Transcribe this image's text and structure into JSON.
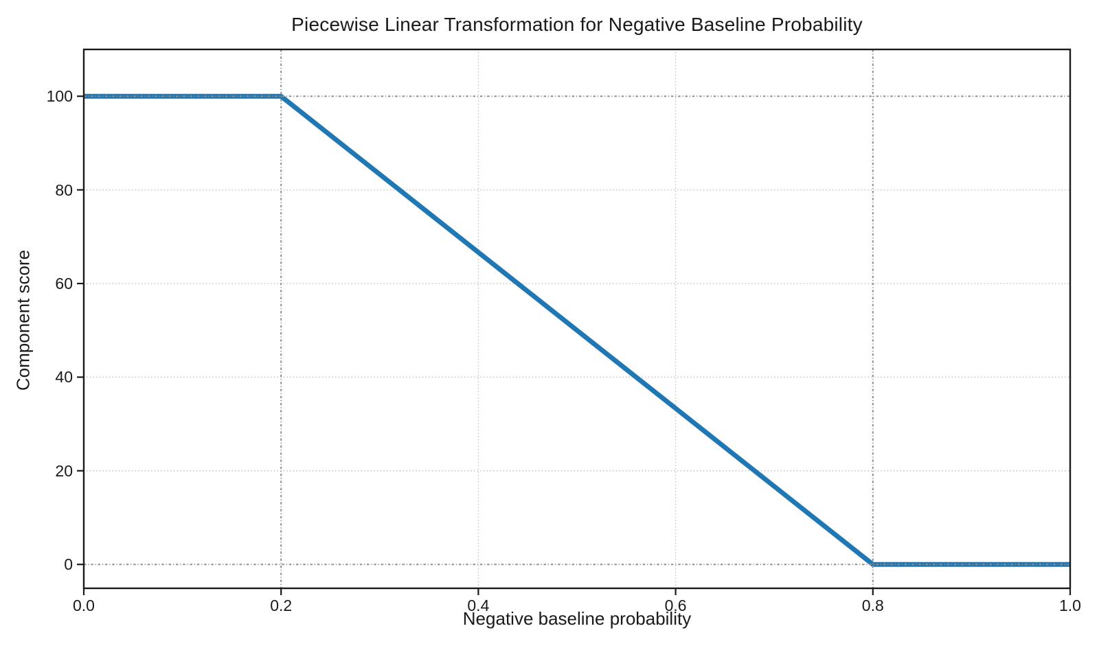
{
  "chart_data": {
    "type": "line",
    "title": "Piecewise Linear Transformation for Negative Baseline Probability",
    "xlabel": "Negative baseline probability",
    "ylabel": "Component score",
    "xlim": [
      0.0,
      1.0
    ],
    "ylim": [
      -5.1,
      110
    ],
    "x_ticks": [
      0.0,
      0.2,
      0.4,
      0.6,
      0.8,
      1.0
    ],
    "x_tick_labels": [
      "0.0",
      "0.2",
      "0.4",
      "0.6",
      "0.8",
      "1.0"
    ],
    "y_ticks": [
      0,
      20,
      40,
      60,
      80,
      100
    ],
    "y_tick_labels": [
      "0",
      "20",
      "40",
      "60",
      "80",
      "100"
    ],
    "grid": {
      "enabled": true,
      "style": "dotted",
      "color": "#c9c9c9"
    },
    "reference_lines": {
      "style": "dashdot",
      "color": "#8f8f8f",
      "x_values": [
        0.2,
        0.8
      ],
      "y_values": [
        0,
        100
      ]
    },
    "series": [
      {
        "name": "component-score-curve",
        "color": "#1f77b4",
        "linewidth": 7,
        "points": [
          [
            0.0,
            100
          ],
          [
            0.2,
            100
          ],
          [
            0.8,
            0
          ],
          [
            1.0,
            0
          ]
        ]
      }
    ],
    "legend": null,
    "spine_color": "#1a1a1a"
  }
}
